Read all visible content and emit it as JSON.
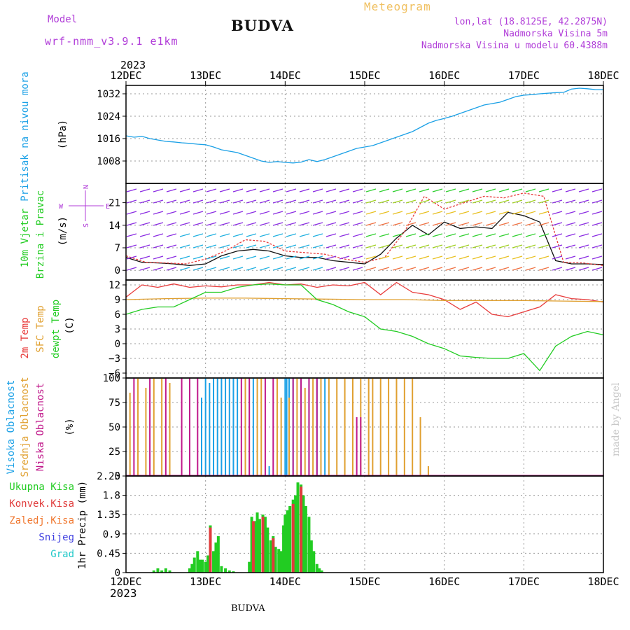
{
  "header": {
    "model_label": "Model",
    "model_name": "wrf-nmm_v3.9.1 e1km",
    "title": "BUDVA",
    "meteogram": "Meteogram",
    "lonlat": "lon,lat (18.8125E, 42.2875N)",
    "altitude": "Nadmorska Visina 5m",
    "model_altitude": "Nadmorska Visina u modelu 60.4388m",
    "year_top": "2023",
    "year_bottom": "2023",
    "footer_title": "BUDVA",
    "watermark": "made by Angel"
  },
  "colors": {
    "pressure": "#1aa0e6",
    "temp2m": "#e83c3c",
    "sfc": "#e0a030",
    "dewpt": "#22cc22",
    "high_cloud": "#1aa0e6",
    "mid_cloud": "#e0a030",
    "low_cloud": "#c0188a",
    "precip_total": "#22cc22",
    "precip_conv": "#e03c3c",
    "precip_frozen": "#f07830",
    "snow": "#4040e0",
    "hail": "#20c8c8",
    "purple_text": "#b03cd8"
  },
  "chart_data": [
    {
      "type": "line",
      "panel": "pressure",
      "ylabel": "Pritisak na nivou mora",
      "unit": "(hPa)",
      "ylim": [
        1000,
        1035
      ],
      "yticks": [
        1008,
        1016,
        1024,
        1032
      ],
      "x_labels": [
        "12DEC",
        "13DEC",
        "14DEC",
        "15DEC",
        "16DEC",
        "17DEC",
        "18DEC"
      ],
      "grid": true,
      "series": [
        {
          "x": [
            0,
            0.1,
            0.2,
            0.3,
            0.4,
            0.5,
            0.6,
            0.7,
            0.8,
            0.9,
            1,
            1.1,
            1.2,
            1.3,
            1.4,
            1.5,
            1.6,
            1.7,
            1.8,
            1.9,
            2,
            2.1,
            2.2,
            2.3,
            2.4,
            2.5,
            2.6,
            2.7,
            2.8,
            2.9,
            3,
            3.1,
            3.2,
            3.3,
            3.4,
            3.5,
            3.6,
            3.7,
            3.8,
            3.9,
            4,
            4.1,
            4.2,
            4.3,
            4.4,
            4.5,
            4.6,
            4.7,
            4.8,
            4.9,
            5,
            5.1,
            5.2,
            5.3,
            5.4,
            5.5,
            5.6,
            5.7,
            5.8,
            5.9,
            6
          ],
          "values": [
            1017,
            1016.5,
            1016.8,
            1016,
            1015.5,
            1015,
            1014.8,
            1014.5,
            1014.3,
            1014,
            1013.8,
            1013,
            1012,
            1011.5,
            1011,
            1010,
            1009,
            1008,
            1007.5,
            1007.8,
            1007.5,
            1007.3,
            1007.6,
            1008.5,
            1007.8,
            1008.5,
            1009.5,
            1010.5,
            1011.5,
            1012.5,
            1013,
            1013.5,
            1014.5,
            1015.5,
            1016.5,
            1017.5,
            1018.5,
            1020,
            1021.5,
            1022.5,
            1023.2,
            1024,
            1025,
            1026,
            1027,
            1028,
            1028.5,
            1029,
            1030,
            1031,
            1031.5,
            1031.7,
            1032,
            1032.2,
            1032.4,
            1032.5,
            1033.7,
            1034,
            1033.8,
            1033.5,
            1033.5
          ]
        }
      ]
    },
    {
      "type": "line",
      "panel": "wind",
      "ylabel_1": "10m Vjetar",
      "ylabel_2": "Brzina i Pravac",
      "unit": "(m/s)",
      "compass": "N",
      "compass_w": "W",
      "compass_e": "E",
      "compass_s": "S",
      "ylim": [
        -3,
        27
      ],
      "yticks": [
        0,
        7,
        14,
        21
      ],
      "grid": true,
      "series": [
        {
          "name": "speed",
          "x": [
            0,
            0.2,
            0.4,
            0.6,
            0.8,
            1,
            1.2,
            1.4,
            1.6,
            1.8,
            2,
            2.2,
            2.4,
            2.6,
            2.8,
            3,
            3.2,
            3.4,
            3.6,
            3.8,
            4,
            4.2,
            4.4,
            4.6,
            4.8,
            5,
            5.2,
            5.4,
            5.6,
            5.8,
            6
          ],
          "values": [
            4,
            2.5,
            2.3,
            2,
            1.5,
            2,
            4.5,
            6,
            6.5,
            6,
            4.5,
            4,
            4,
            3,
            2.5,
            2,
            5,
            10,
            14,
            11,
            15,
            13,
            13.5,
            13,
            18,
            17,
            15,
            3,
            2,
            2,
            1.8
          ]
        },
        {
          "name": "gust",
          "x": [
            0,
            0.25,
            0.5,
            0.75,
            1,
            1.25,
            1.5,
            1.75,
            2,
            2.25,
            2.5,
            2.75,
            3,
            3.25,
            3.5,
            3.75,
            4,
            4.25,
            4.5,
            4.75,
            5,
            5.25,
            5.5,
            5.75,
            6
          ],
          "values": [
            4.5,
            2.5,
            2.3,
            2,
            3.5,
            6,
            9.5,
            9,
            6,
            5.5,
            5,
            3.5,
            2.5,
            4,
            12,
            23,
            19,
            21,
            23,
            22.5,
            24,
            23,
            2.5,
            2.3,
            1.5
          ]
        }
      ]
    },
    {
      "type": "line",
      "panel": "temperature",
      "ylabels": [
        "2m Temp",
        "SFC Temp",
        "dewpt Temp"
      ],
      "unit": "(C)",
      "ylim": [
        -7,
        13
      ],
      "yticks": [
        -6,
        -3,
        0,
        3,
        6,
        9,
        12
      ],
      "grid": true,
      "series": [
        {
          "name": "2m Temp",
          "x": [
            0,
            0.2,
            0.4,
            0.6,
            0.8,
            1,
            1.2,
            1.4,
            1.6,
            1.8,
            2,
            2.2,
            2.4,
            2.6,
            2.8,
            3,
            3.2,
            3.4,
            3.6,
            3.8,
            4,
            4.2,
            4.4,
            4.6,
            4.8,
            5,
            5.2,
            5.4,
            5.6,
            5.8,
            6
          ],
          "values": [
            9.5,
            12,
            11.5,
            12.2,
            11.5,
            11.8,
            11.6,
            12,
            12,
            12.5,
            12,
            12.2,
            11.5,
            12,
            11.8,
            12.5,
            10,
            12.5,
            10.5,
            10,
            9,
            7,
            8.5,
            6,
            5.5,
            6.5,
            7.5,
            10,
            9.2,
            9,
            8.5
          ]
        },
        {
          "name": "SFC Temp",
          "x": [
            0,
            0.5,
            1,
            1.5,
            2,
            2.5,
            3,
            3.5,
            4,
            4.5,
            5,
            5.5,
            6
          ],
          "values": [
            9,
            9.2,
            9.3,
            9.3,
            9.2,
            9.1,
            9,
            9,
            8.8,
            8.8,
            8.8,
            8.7,
            8.6
          ]
        },
        {
          "name": "dewpt Temp",
          "x": [
            0,
            0.2,
            0.4,
            0.6,
            0.8,
            1,
            1.2,
            1.4,
            1.6,
            1.8,
            2,
            2.2,
            2.4,
            2.6,
            2.8,
            3,
            3.2,
            3.4,
            3.6,
            3.8,
            4,
            4.2,
            4.4,
            4.6,
            4.8,
            5,
            5.2,
            5.4,
            5.6,
            5.8,
            6
          ],
          "values": [
            6,
            7,
            7.5,
            7.5,
            9,
            10.5,
            10.5,
            11.5,
            12,
            12.2,
            12,
            12,
            9,
            8,
            6.5,
            5.5,
            3,
            2.5,
            1.5,
            0,
            -1,
            -2.5,
            -2.8,
            -3,
            -3,
            -2,
            -5.5,
            -0.5,
            1.5,
            2.5,
            1.8
          ]
        }
      ]
    },
    {
      "type": "bar",
      "panel": "cloud",
      "ylabels": [
        "Visoka Oblacnost",
        "Srednja Oblacnost",
        "Niska Oblacnost"
      ],
      "unit": "(%)",
      "ylim": [
        0,
        100
      ],
      "yticks": [
        0,
        25,
        50,
        75,
        100
      ],
      "grid": true,
      "series": [
        {
          "name": "Visoka Oblacnost",
          "x": [
            0.95,
            1.0,
            1.05,
            1.1,
            1.15,
            1.2,
            1.25,
            1.3,
            1.35,
            1.4,
            1.6,
            1.8,
            2.0,
            2.02,
            2.05,
            2.1,
            2.2,
            2.3,
            2.4,
            2.5
          ],
          "values": [
            80,
            100,
            95,
            100,
            100,
            100,
            100,
            100,
            100,
            100,
            100,
            10,
            100,
            100,
            100,
            100,
            100,
            100,
            100,
            100
          ]
        },
        {
          "name": "Srednja Oblacnost",
          "x": [
            0.05,
            0.15,
            0.25,
            0.35,
            0.45,
            0.55,
            1.5,
            1.65,
            1.7,
            1.9,
            1.95,
            2.05,
            2.15,
            2.25,
            2.35,
            2.45,
            2.55,
            2.65,
            2.75,
            2.85,
            2.95,
            3.05,
            3.1,
            3.2,
            3.3,
            3.4,
            3.5,
            3.6,
            3.7,
            3.8
          ],
          "values": [
            85,
            100,
            90,
            100,
            100,
            95,
            100,
            100,
            100,
            100,
            80,
            80,
            100,
            90,
            100,
            100,
            100,
            100,
            100,
            100,
            100,
            100,
            100,
            100,
            100,
            100,
            100,
            100,
            60,
            10
          ]
        },
        {
          "name": "Niska Oblacnost",
          "x": [
            0.1,
            0.3,
            0.5,
            0.7,
            0.8,
            0.9,
            1.45,
            1.55,
            1.75,
            1.85,
            2.1,
            2.2,
            2.3,
            2.4,
            2.9,
            2.95
          ],
          "values": [
            100,
            100,
            100,
            100,
            100,
            100,
            100,
            100,
            100,
            100,
            100,
            100,
            100,
            100,
            60,
            60
          ]
        }
      ]
    },
    {
      "type": "bar",
      "panel": "precip",
      "ylabel": "1hr Precip (mm)",
      "legend": [
        "Ukupna Kisa",
        "Konvek.Kisa",
        "Zaledj.Kisa",
        "Snijeg",
        "Grad"
      ],
      "ylim": [
        0,
        2.25
      ],
      "yticks": [
        0,
        0.45,
        0.9,
        1.35,
        1.8,
        2.25
      ],
      "ytick_labels": [
        "0",
        "0.45",
        "0.9",
        "1.35",
        "1.8",
        "2.25"
      ],
      "x_labels": [
        "12DEC",
        "13DEC",
        "14DEC",
        "15DEC",
        "16DEC",
        "17DEC",
        "18DEC"
      ],
      "grid": true,
      "series": [
        {
          "name": "Ukupna Kisa",
          "x": [
            0.35,
            0.4,
            0.45,
            0.5,
            0.55,
            0.8,
            0.83,
            0.86,
            0.9,
            0.93,
            0.96,
            1.0,
            1.03,
            1.06,
            1.1,
            1.13,
            1.16,
            1.2,
            1.25,
            1.3,
            1.35,
            1.55,
            1.58,
            1.62,
            1.65,
            1.68,
            1.72,
            1.75,
            1.78,
            1.82,
            1.85,
            1.88,
            1.92,
            1.95,
            1.98,
            2.0,
            2.03,
            2.06,
            2.1,
            2.13,
            2.16,
            2.2,
            2.23,
            2.26,
            2.3,
            2.33,
            2.36,
            2.4,
            2.43,
            2.46
          ],
          "values": [
            0.05,
            0.1,
            0.05,
            0.1,
            0.05,
            0.1,
            0.2,
            0.35,
            0.5,
            0.3,
            0.3,
            0.25,
            0.4,
            1.1,
            0.5,
            0.7,
            0.85,
            0.15,
            0.1,
            0.05,
            0.03,
            0.25,
            1.3,
            1.2,
            1.4,
            1.25,
            1.35,
            1.3,
            1.05,
            0.75,
            0.85,
            0.6,
            0.55,
            0.5,
            1.1,
            1.35,
            1.45,
            1.55,
            1.7,
            1.8,
            2.1,
            2.05,
            1.8,
            1.55,
            1.3,
            0.75,
            0.5,
            0.2,
            0.1,
            0.05
          ]
        },
        {
          "name": "Konvek.Kisa",
          "x": [
            1.06,
            1.6,
            1.72,
            1.85,
            2.1,
            2.2
          ],
          "values": [
            1.05,
            1.2,
            1.3,
            0.8,
            1.6,
            2.0
          ]
        }
      ]
    }
  ]
}
